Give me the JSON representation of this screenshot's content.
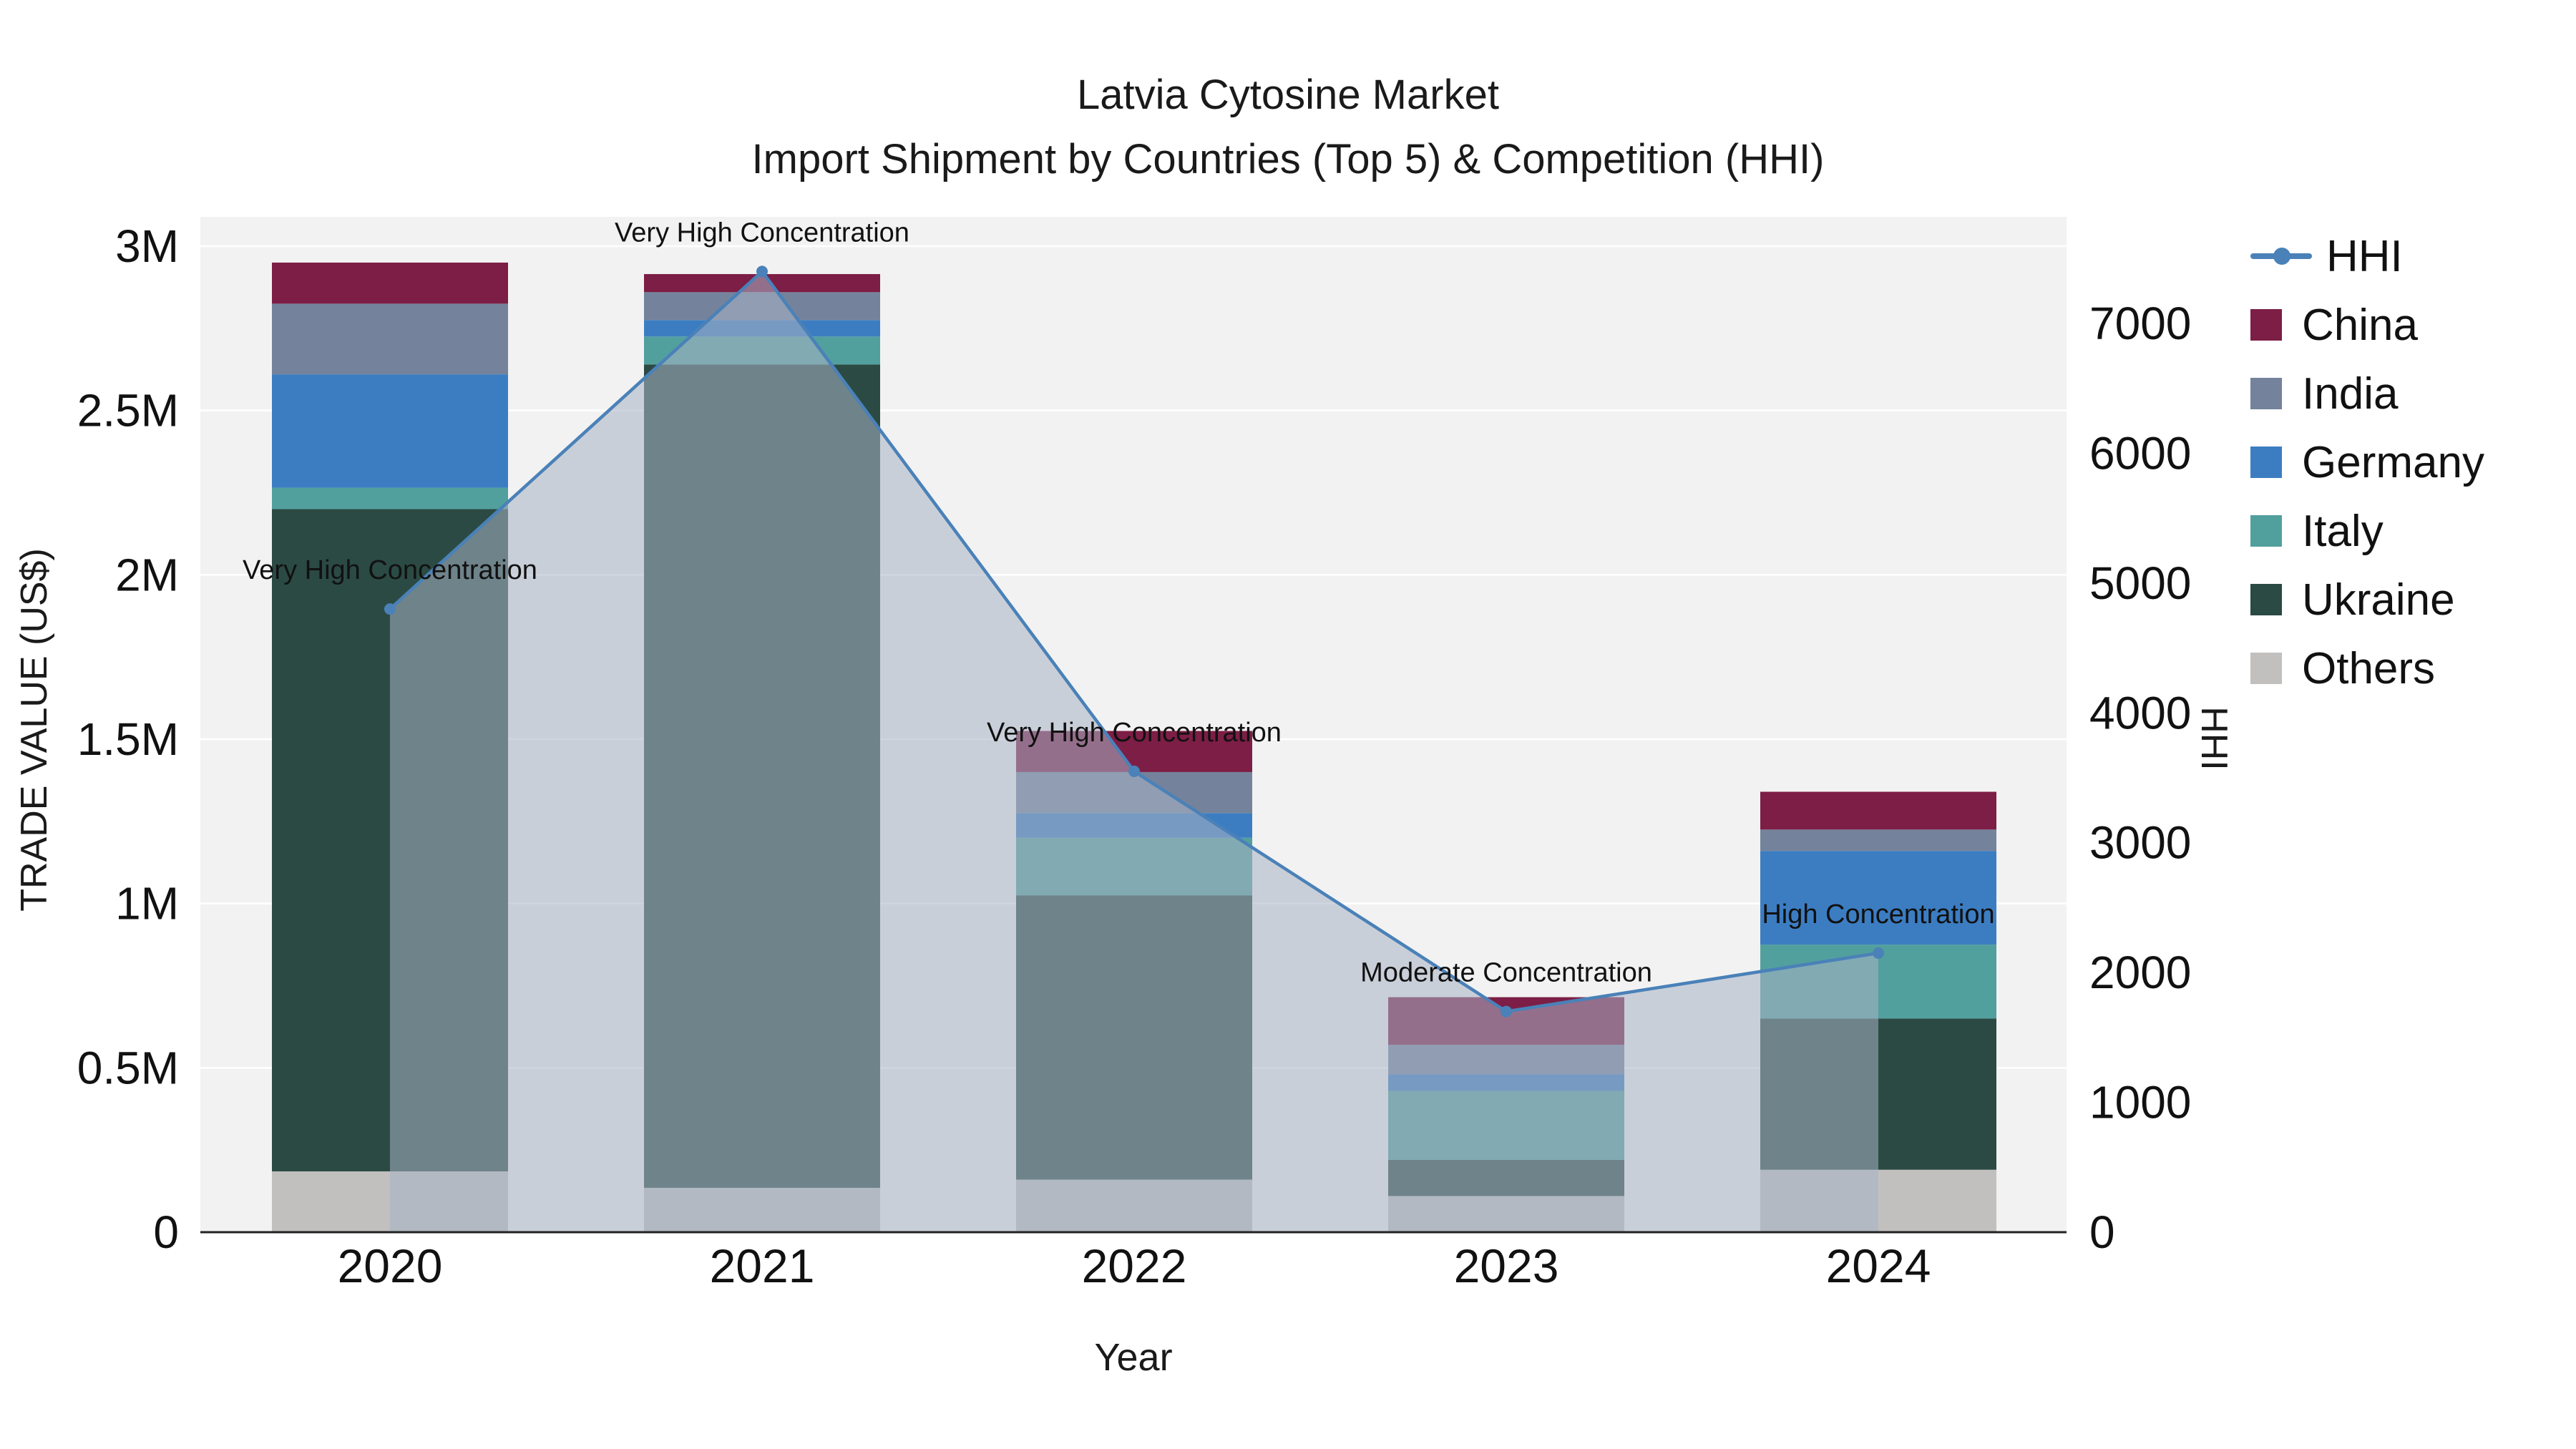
{
  "title": {
    "line1": "Latvia Cytosine Market",
    "line2": "Import Shipment by Countries (Top 5) & Competition (HHI)"
  },
  "chart_data": {
    "type": "combo-stacked-bar-line",
    "x": [
      "2020",
      "2021",
      "2022",
      "2023",
      "2024"
    ],
    "xlabel": "Year",
    "ylabel_left": "TRADE VALUE (US$)",
    "ylabel_right": "HHI",
    "ylim_left": [
      0,
      3000000
    ],
    "ylim_right": [
      0,
      7000
    ],
    "grid": "on",
    "legend_position": "right",
    "yticks_left": [
      {
        "v": 0,
        "label": "0"
      },
      {
        "v": 500000,
        "label": "0.5M"
      },
      {
        "v": 1000000,
        "label": "1M"
      },
      {
        "v": 1500000,
        "label": "1.5M"
      },
      {
        "v": 2000000,
        "label": "2M"
      },
      {
        "v": 2500000,
        "label": "2.5M"
      },
      {
        "v": 3000000,
        "label": "3M"
      }
    ],
    "yticks_right": [
      {
        "v": 0,
        "label": "0"
      },
      {
        "v": 1000,
        "label": "1000"
      },
      {
        "v": 2000,
        "label": "2000"
      },
      {
        "v": 3000,
        "label": "3000"
      },
      {
        "v": 4000,
        "label": "4000"
      },
      {
        "v": 5000,
        "label": "5000"
      },
      {
        "v": 6000,
        "label": "6000"
      },
      {
        "v": 7000,
        "label": "7000"
      }
    ],
    "stack_order": "bottom-to-top",
    "series": [
      {
        "name": "Others",
        "color": "#c2c0be",
        "values": [
          185000,
          135000,
          160000,
          110000,
          190000
        ]
      },
      {
        "name": "Ukraine",
        "color": "#2b4a43",
        "values": [
          2015000,
          2505000,
          865000,
          110000,
          460000
        ]
      },
      {
        "name": "Italy",
        "color": "#52a09e",
        "values": [
          65000,
          85000,
          175000,
          210000,
          225000
        ]
      },
      {
        "name": "Germany",
        "color": "#3c7dc2",
        "values": [
          345000,
          50000,
          75000,
          50000,
          285000
        ]
      },
      {
        "name": "India",
        "color": "#74839b",
        "values": [
          215000,
          85000,
          125000,
          90000,
          65000
        ]
      },
      {
        "name": "China",
        "color": "#7c1e45",
        "values": [
          125000,
          55000,
          125000,
          145000,
          115000
        ]
      }
    ],
    "line_series": {
      "name": "HHI",
      "color": "#4a81b8",
      "area_fill": "rgba(167,178,196,0.55)",
      "values": [
        4800,
        7400,
        3550,
        1700,
        2150
      ],
      "annotations": [
        "Very High Concentration",
        "Very High Concentration",
        "Very High Concentration",
        "Moderate Concentration",
        "High Concentration"
      ]
    },
    "legend": [
      {
        "label": "HHI",
        "swatch": "line",
        "color": "#4a81b8"
      },
      {
        "label": "China",
        "swatch": "square",
        "color": "#7c1e45"
      },
      {
        "label": "India",
        "swatch": "square",
        "color": "#74839b"
      },
      {
        "label": "Germany",
        "swatch": "square",
        "color": "#3c7dc2"
      },
      {
        "label": "Italy",
        "swatch": "square",
        "color": "#52a09e"
      },
      {
        "label": "Ukraine",
        "swatch": "square",
        "color": "#2b4a43"
      },
      {
        "label": "Others",
        "swatch": "square",
        "color": "#c2c0be"
      }
    ],
    "colors": {
      "plot_background": "#f2f2f2",
      "gridline": "#ffffff",
      "axis_line": "#222222",
      "text": "#111111"
    }
  }
}
